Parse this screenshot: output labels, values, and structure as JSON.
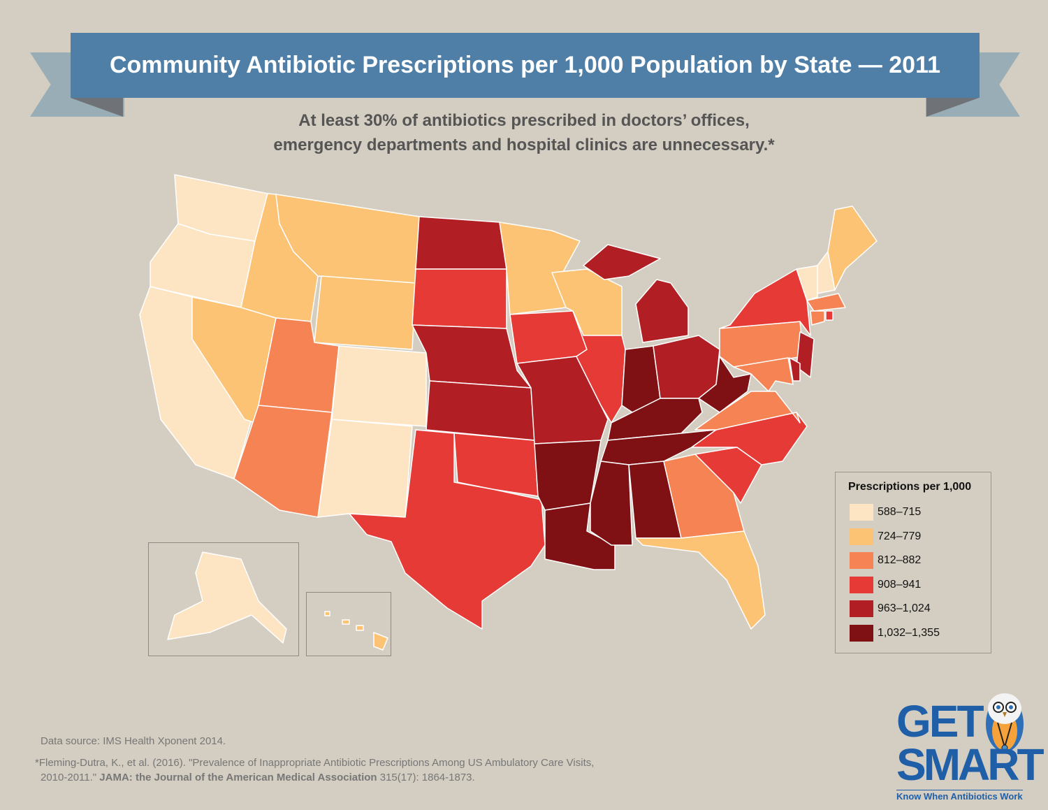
{
  "title": "Community Antibiotic Prescriptions per 1,000 Population by State — 2011",
  "subtitle": {
    "line1": "At least 30% of antibiotics prescribed in doctors’ offices,",
    "line2": "emergency departments and hospital clinics are unnecessary.*"
  },
  "legend": {
    "title": "Prescriptions per 1,000",
    "bins": [
      {
        "label": "588–715",
        "color": "#fde5c4"
      },
      {
        "label": "724–779",
        "color": "#fcc375"
      },
      {
        "label": "812–882",
        "color": "#f58354"
      },
      {
        "label": "908–941",
        "color": "#e53a35"
      },
      {
        "label": "963–1,024",
        "color": "#b11f24"
      },
      {
        "label": "1,032–1,355",
        "color": "#7f1115"
      }
    ]
  },
  "states": {
    "WA": 0,
    "OR": 0,
    "CA": 0,
    "NV": 1,
    "ID": 1,
    "MT": 1,
    "WY": 1,
    "UT": 2,
    "CO": 0,
    "AZ": 2,
    "NM": 0,
    "ND": 4,
    "SD": 3,
    "NE": 4,
    "KS": 4,
    "OK": 3,
    "TX": 3,
    "MN": 1,
    "IA": 3,
    "MO": 4,
    "AR": 5,
    "LA": 5,
    "WI": 1,
    "IL": 3,
    "MI": 4,
    "IN": 5,
    "OH": 4,
    "KY": 5,
    "TN": 5,
    "MS": 5,
    "AL": 5,
    "GA": 2,
    "FL": 1,
    "SC": 3,
    "NC": 3,
    "VA": 2,
    "WV": 5,
    "PA": 2,
    "NY": 3,
    "VT": 0,
    "NH": 0,
    "ME": 1,
    "MA": 2,
    "CT": 2,
    "RI": 3,
    "NJ": 4,
    "DE": 4,
    "MD": 2,
    "AK": 0,
    "HI": 1
  },
  "footer": {
    "source": "Data source: IMS Health Xponent 2014.",
    "citation_part1": "*Fleming-Dutra, K., et al. (2016). \"Prevalence of Inappropriate Antibiotic Prescriptions Among US Ambulatory Care Visits,",
    "citation_part2": "2010-2011.\" ",
    "citation_journal": "JAMA: the Journal of the American Medical Association",
    "citation_part3": " 315(17): 1864-1873."
  },
  "logo": {
    "line1": "GET",
    "line2": "SMART",
    "tagline": "Know When Antibiotics Work"
  }
}
